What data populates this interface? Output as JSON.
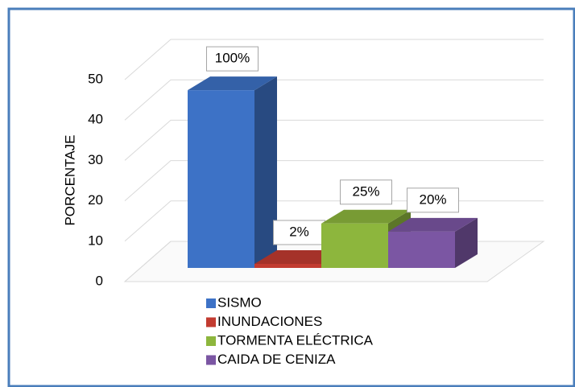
{
  "chart_data": {
    "type": "bar3d",
    "ylabel": "PORCENTAJE",
    "categories": [
      "SISMO",
      "INUNDACIONES",
      "TORMENTA ELÉCTRICA",
      "CAIDA DE CENIZA"
    ],
    "values": [
      44,
      1,
      11,
      9
    ],
    "value_labels": [
      "100%",
      "2%",
      "25%",
      "20%"
    ],
    "colors": [
      "#3d72c6",
      "#c23b30",
      "#8db63d",
      "#7b56a3"
    ],
    "ylim": [
      0,
      50
    ],
    "yticks": [
      0,
      10,
      20,
      30,
      40,
      50
    ],
    "grid": true,
    "legend": "bottom"
  }
}
